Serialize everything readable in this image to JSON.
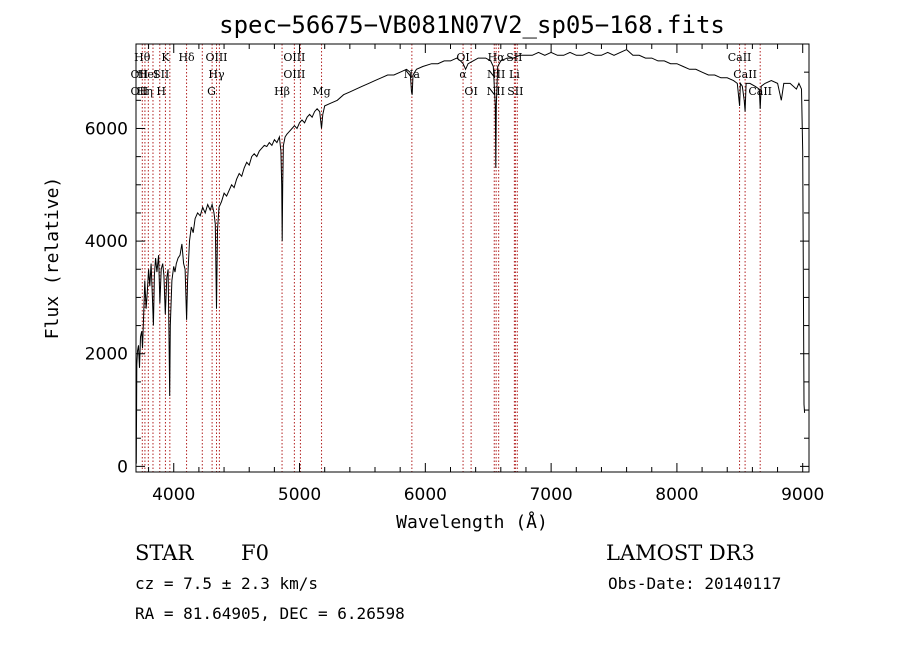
{
  "chart_data": {
    "type": "line",
    "title": "spec−56675−VB081N07V2_sp05−168.fits",
    "xlabel": "Wavelength (Å)",
    "ylabel": "Flux (relative)",
    "xlim": [
      3700,
      9050
    ],
    "ylim": [
      -100,
      7500
    ],
    "x_ticks": [
      4000,
      5000,
      6000,
      7000,
      8000,
      9000
    ],
    "y_ticks": [
      0,
      2000,
      4000,
      6000
    ],
    "grid": false,
    "line_color": "#000000",
    "marker_color": "#b22222",
    "spectrum": [
      [
        3702,
        50
      ],
      [
        3706,
        1800
      ],
      [
        3712,
        2050
      ],
      [
        3720,
        2150
      ],
      [
        3728,
        1750
      ],
      [
        3736,
        2300
      ],
      [
        3745,
        2400
      ],
      [
        3752,
        2100
      ],
      [
        3760,
        2600
      ],
      [
        3770,
        3300
      ],
      [
        3780,
        2800
      ],
      [
        3790,
        3100
      ],
      [
        3800,
        3500
      ],
      [
        3810,
        3200
      ],
      [
        3820,
        3600
      ],
      [
        3830,
        3000
      ],
      [
        3838,
        2500
      ],
      [
        3846,
        3400
      ],
      [
        3856,
        3700
      ],
      [
        3866,
        3450
      ],
      [
        3880,
        3750
      ],
      [
        3890,
        2900
      ],
      [
        3900,
        3500
      ],
      [
        3912,
        3600
      ],
      [
        3922,
        3400
      ],
      [
        3933,
        2700
      ],
      [
        3945,
        3350
      ],
      [
        3955,
        3500
      ],
      [
        3962,
        2300
      ],
      [
        3968,
        1250
      ],
      [
        3973,
        2500
      ],
      [
        3985,
        3300
      ],
      [
        4000,
        3550
      ],
      [
        4010,
        3450
      ],
      [
        4020,
        3600
      ],
      [
        4035,
        3700
      ],
      [
        4050,
        3750
      ],
      [
        4065,
        3950
      ],
      [
        4078,
        3600
      ],
      [
        4090,
        3500
      ],
      [
        4102,
        2600
      ],
      [
        4110,
        3300
      ],
      [
        4125,
        4000
      ],
      [
        4140,
        4250
      ],
      [
        4155,
        4150
      ],
      [
        4170,
        4400
      ],
      [
        4190,
        4500
      ],
      [
        4210,
        4450
      ],
      [
        4230,
        4600
      ],
      [
        4250,
        4500
      ],
      [
        4270,
        4650
      ],
      [
        4290,
        4550
      ],
      [
        4305,
        4650
      ],
      [
        4320,
        4500
      ],
      [
        4330,
        4300
      ],
      [
        4340,
        2800
      ],
      [
        4348,
        4200
      ],
      [
        4360,
        4600
      ],
      [
        4380,
        4700
      ],
      [
        4400,
        4850
      ],
      [
        4420,
        4800
      ],
      [
        4440,
        4900
      ],
      [
        4460,
        5000
      ],
      [
        4480,
        4950
      ],
      [
        4500,
        5100
      ],
      [
        4520,
        5200
      ],
      [
        4540,
        5150
      ],
      [
        4560,
        5300
      ],
      [
        4580,
        5400
      ],
      [
        4600,
        5350
      ],
      [
        4620,
        5500
      ],
      [
        4640,
        5550
      ],
      [
        4660,
        5500
      ],
      [
        4680,
        5600
      ],
      [
        4700,
        5650
      ],
      [
        4720,
        5700
      ],
      [
        4740,
        5680
      ],
      [
        4760,
        5750
      ],
      [
        4780,
        5700
      ],
      [
        4800,
        5800
      ],
      [
        4820,
        5750
      ],
      [
        4840,
        5850
      ],
      [
        4852,
        5600
      ],
      [
        4858,
        5000
      ],
      [
        4862,
        4000
      ],
      [
        4866,
        5000
      ],
      [
        4872,
        5700
      ],
      [
        4885,
        5850
      ],
      [
        4900,
        5900
      ],
      [
        4920,
        5950
      ],
      [
        4940,
        6000
      ],
      [
        4960,
        6050
      ],
      [
        4980,
        6000
      ],
      [
        5000,
        6100
      ],
      [
        5020,
        6150
      ],
      [
        5040,
        6100
      ],
      [
        5060,
        6200
      ],
      [
        5080,
        6250
      ],
      [
        5100,
        6200
      ],
      [
        5120,
        6300
      ],
      [
        5140,
        6350
      ],
      [
        5160,
        6300
      ],
      [
        5175,
        6000
      ],
      [
        5185,
        6250
      ],
      [
        5200,
        6400
      ],
      [
        5250,
        6450
      ],
      [
        5300,
        6500
      ],
      [
        5350,
        6600
      ],
      [
        5400,
        6650
      ],
      [
        5450,
        6700
      ],
      [
        5500,
        6750
      ],
      [
        5550,
        6800
      ],
      [
        5600,
        6850
      ],
      [
        5650,
        6900
      ],
      [
        5700,
        6950
      ],
      [
        5750,
        6950
      ],
      [
        5800,
        7000
      ],
      [
        5850,
        7050
      ],
      [
        5880,
        7000
      ],
      [
        5890,
        6650
      ],
      [
        5896,
        6600
      ],
      [
        5902,
        6950
      ],
      [
        5930,
        7050
      ],
      [
        5980,
        7100
      ],
      [
        6050,
        7150
      ],
      [
        6100,
        7150
      ],
      [
        6150,
        7200
      ],
      [
        6200,
        7200
      ],
      [
        6250,
        7250
      ],
      [
        6280,
        7200
      ],
      [
        6300,
        7150
      ],
      [
        6320,
        7050
      ],
      [
        6340,
        7150
      ],
      [
        6380,
        7200
      ],
      [
        6420,
        7250
      ],
      [
        6480,
        7250
      ],
      [
        6520,
        7200
      ],
      [
        6540,
        7100
      ],
      [
        6556,
        6400
      ],
      [
        6560,
        5300
      ],
      [
        6564,
        6400
      ],
      [
        6575,
        7100
      ],
      [
        6600,
        7200
      ],
      [
        6650,
        7250
      ],
      [
        6700,
        7250
      ],
      [
        6750,
        7300
      ],
      [
        6800,
        7300
      ],
      [
        6850,
        7300
      ],
      [
        6900,
        7350
      ],
      [
        6950,
        7300
      ],
      [
        7000,
        7350
      ],
      [
        7050,
        7300
      ],
      [
        7100,
        7300
      ],
      [
        7150,
        7350
      ],
      [
        7200,
        7300
      ],
      [
        7250,
        7300
      ],
      [
        7300,
        7350
      ],
      [
        7350,
        7300
      ],
      [
        7400,
        7300
      ],
      [
        7450,
        7350
      ],
      [
        7500,
        7300
      ],
      [
        7550,
        7350
      ],
      [
        7600,
        7400
      ],
      [
        7650,
        7300
      ],
      [
        7700,
        7300
      ],
      [
        7750,
        7250
      ],
      [
        7800,
        7250
      ],
      [
        7850,
        7200
      ],
      [
        7900,
        7200
      ],
      [
        7950,
        7150
      ],
      [
        8000,
        7150
      ],
      [
        8050,
        7100
      ],
      [
        8100,
        7050
      ],
      [
        8150,
        7050
      ],
      [
        8200,
        7000
      ],
      [
        8250,
        6950
      ],
      [
        8300,
        6950
      ],
      [
        8350,
        6900
      ],
      [
        8400,
        6900
      ],
      [
        8450,
        6850
      ],
      [
        8480,
        6800
      ],
      [
        8498,
        6400
      ],
      [
        8505,
        6800
      ],
      [
        8520,
        6750
      ],
      [
        8535,
        6500
      ],
      [
        8542,
        6300
      ],
      [
        8550,
        6800
      ],
      [
        8580,
        6800
      ],
      [
        8620,
        6750
      ],
      [
        8655,
        6700
      ],
      [
        8662,
        6350
      ],
      [
        8670,
        6750
      ],
      [
        8700,
        6800
      ],
      [
        8750,
        6850
      ],
      [
        8800,
        6800
      ],
      [
        8830,
        6500
      ],
      [
        8850,
        6800
      ],
      [
        8900,
        6800
      ],
      [
        8950,
        6700
      ],
      [
        8970,
        6800
      ],
      [
        8990,
        6700
      ],
      [
        9000,
        5600
      ],
      [
        9010,
        1100
      ],
      [
        9015,
        950
      ]
    ],
    "line_markers": [
      {
        "x": 3750,
        "row": 1,
        "label": "Hθ"
      },
      {
        "x": 3771,
        "row": 1,
        "label": ""
      },
      {
        "x": 3798,
        "row": 1,
        "label": ""
      },
      {
        "x": 3835,
        "row": 1,
        "label": ""
      },
      {
        "x": 3889,
        "row": 1,
        "label": ""
      },
      {
        "x": 3934,
        "row": 1,
        "label": "K"
      },
      {
        "x": 3969,
        "row": 1,
        "label": ""
      },
      {
        "x": 4102,
        "row": 1,
        "label": "Hδ"
      },
      {
        "x": 4227,
        "row": 1,
        "label": ""
      },
      {
        "x": 4305,
        "row": 1,
        "label": ""
      },
      {
        "x": 4340,
        "row": 1,
        "label": "OIII"
      },
      {
        "x": 4363,
        "row": 1,
        "label": ""
      },
      {
        "x": 4861,
        "row": 1,
        "label": ""
      },
      {
        "x": 4959,
        "row": 1,
        "label": "OIII"
      },
      {
        "x": 5007,
        "row": 1,
        "label": ""
      },
      {
        "x": 5175,
        "row": 1,
        "label": ""
      },
      {
        "x": 5893,
        "row": 1,
        "label": ""
      },
      {
        "x": 6300,
        "row": 1,
        "label": "OI"
      },
      {
        "x": 6364,
        "row": 1,
        "label": ""
      },
      {
        "x": 6548,
        "row": 1,
        "label": ""
      },
      {
        "x": 6563,
        "row": 1,
        "label": "Hα"
      },
      {
        "x": 6583,
        "row": 1,
        "label": ""
      },
      {
        "x": 6708,
        "row": 1,
        "label": "SII"
      },
      {
        "x": 6716,
        "row": 1,
        "label": ""
      },
      {
        "x": 6731,
        "row": 1,
        "label": ""
      },
      {
        "x": 8498,
        "row": 1,
        "label": "CaII"
      },
      {
        "x": 8542,
        "row": 1,
        "label": ""
      },
      {
        "x": 8662,
        "row": 1,
        "label": ""
      }
    ],
    "line_labels": [
      {
        "x": 3727,
        "row": 2,
        "label": "OII"
      },
      {
        "x": 3778,
        "row": 2,
        "label": "He"
      },
      {
        "x": 3860,
        "row": 2,
        "label": "I"
      },
      {
        "x": 3900,
        "row": 2,
        "label": "SII"
      },
      {
        "x": 4340,
        "row": 2,
        "label": "Hγ"
      },
      {
        "x": 4959,
        "row": 2,
        "label": "OIII"
      },
      {
        "x": 5893,
        "row": 2,
        "label": "Na"
      },
      {
        "x": 6300,
        "row": 2,
        "label": "α"
      },
      {
        "x": 6563,
        "row": 2,
        "label": "NII"
      },
      {
        "x": 6708,
        "row": 2,
        "label": "Li"
      },
      {
        "x": 8542,
        "row": 2,
        "label": "CaII"
      },
      {
        "x": 3727,
        "row": 3,
        "label": "OII"
      },
      {
        "x": 3770,
        "row": 3,
        "label": "Hη"
      },
      {
        "x": 3900,
        "row": 3,
        "label": "H"
      },
      {
        "x": 4300,
        "row": 3,
        "label": "G"
      },
      {
        "x": 4861,
        "row": 3,
        "label": "Hβ"
      },
      {
        "x": 5175,
        "row": 3,
        "label": "Mg"
      },
      {
        "x": 6364,
        "row": 3,
        "label": "OI"
      },
      {
        "x": 6560,
        "row": 3,
        "label": "NII"
      },
      {
        "x": 6716,
        "row": 3,
        "label": "SII"
      },
      {
        "x": 8662,
        "row": 3,
        "label": "CaII"
      }
    ]
  },
  "info": {
    "class_label": "STAR",
    "subclass": "F0",
    "survey": "LAMOST DR3",
    "redshift": "cz = 7.5 ± 2.3 km/s",
    "obs_date": "Obs-Date: 20140117",
    "coords": "RA =  81.64905, DEC =   6.26598"
  }
}
